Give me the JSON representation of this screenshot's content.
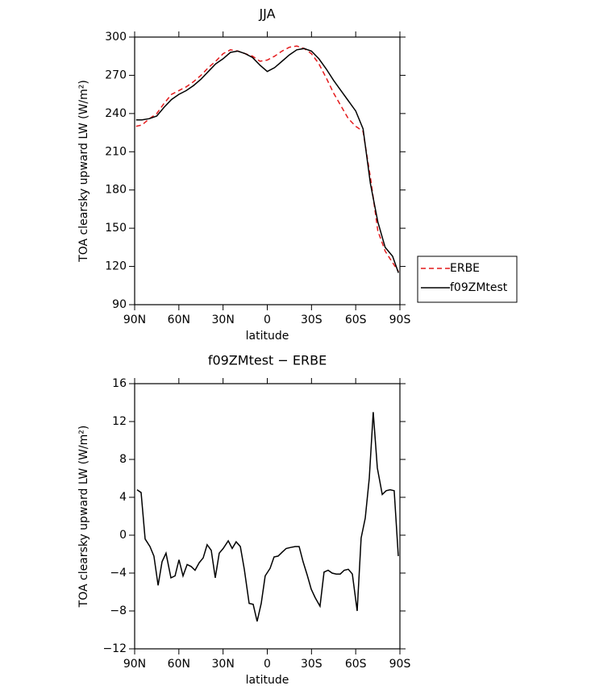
{
  "chart_data": [
    {
      "type": "line",
      "title": "JJA",
      "xlabel": "latitude",
      "ylabel": "TOA clearsky upward LW (W/m²)",
      "x": [
        89,
        85,
        80,
        75,
        70,
        65,
        60,
        55,
        50,
        45,
        40,
        35,
        30,
        25,
        20,
        15,
        10,
        5,
        0,
        -5,
        -10,
        -15,
        -20,
        -25,
        -30,
        -35,
        -40,
        -45,
        -50,
        -55,
        -60,
        -65,
        -70,
        -75,
        -80,
        -85,
        -89
      ],
      "xlim": [
        90,
        -90
      ],
      "xticks": [
        {
          "value": 90,
          "label": "90N"
        },
        {
          "value": 60,
          "label": "60N"
        },
        {
          "value": 30,
          "label": "30N"
        },
        0,
        {
          "value": -30,
          "label": "30S"
        },
        {
          "value": -60,
          "label": "60S"
        },
        {
          "value": -90,
          "label": "90S"
        }
      ],
      "ylim": [
        90,
        300
      ],
      "yticks": [
        90,
        120,
        150,
        180,
        210,
        240,
        270,
        300
      ],
      "legend": "right",
      "series": [
        {
          "name": "ERBE",
          "color": "#e41a1c",
          "dashed": true,
          "values": [
            230,
            231,
            236,
            240,
            248,
            255,
            258,
            261,
            265,
            270,
            276,
            281,
            287,
            290,
            289,
            287,
            285,
            281,
            282,
            285,
            289,
            292,
            293,
            291,
            287,
            279,
            268,
            256,
            246,
            236,
            230,
            226,
            190,
            148,
            132,
            123,
            116
          ]
        },
        {
          "name": "f09ZMtest",
          "color": "#000000",
          "dashed": false,
          "values": [
            235,
            235,
            236,
            238,
            245,
            251,
            255,
            258,
            262,
            267,
            273,
            279,
            283,
            288,
            289,
            287,
            284,
            278,
            273,
            276,
            281,
            286,
            290,
            291,
            289,
            283,
            275,
            266,
            258,
            250,
            242,
            228,
            185,
            155,
            135,
            128,
            115
          ]
        }
      ]
    },
    {
      "type": "line",
      "title": "f09ZMtest − ERBE",
      "xlabel": "latitude",
      "ylabel": "TOA clearsky upward LW (W/m²)",
      "x": [
        88.4,
        85.6,
        82.9,
        79.6,
        76.9,
        74.1,
        71.4,
        68.7,
        65.4,
        62.6,
        59.9,
        57.2,
        54.4,
        51.7,
        49,
        46.2,
        43.5,
        40.8,
        38,
        35.3,
        32.6,
        29.9,
        26.5,
        23.8,
        21.1,
        18.3,
        15.6,
        12.3,
        9.6,
        6.9,
        4.1,
        1.4,
        -1.9,
        -4.6,
        -7.4,
        -10.1,
        -12.8,
        -15.6,
        -18.9,
        -21.6,
        -24.3,
        -27.1,
        -29.8,
        -32.5,
        -35.8,
        -38.5,
        -41.3,
        -44,
        -46.8,
        -49.5,
        -52.2,
        -55,
        -57.7,
        -61,
        -63.7,
        -66.5,
        -69.2,
        -71.9,
        -74.7,
        -78,
        -80.7,
        -83.4,
        -86.1,
        -88.9
      ],
      "values": [
        4.8,
        4.5,
        -0.4,
        -1.2,
        -2.2,
        -5.3,
        -2.8,
        -1.9,
        -4.5,
        -4.3,
        -2.6,
        -4.3,
        -3.1,
        -3.3,
        -3.7,
        -2.9,
        -2.4,
        -1,
        -1.6,
        -4.5,
        -1.9,
        -1.4,
        -0.6,
        -1.4,
        -0.7,
        -1.2,
        -3.6,
        -7.2,
        -7.3,
        -9.1,
        -7.2,
        -4.3,
        -3.5,
        -2.3,
        -2.2,
        -1.8,
        -1.4,
        -1.3,
        -1.2,
        -1.2,
        -2.8,
        -4.2,
        -5.7,
        -6.6,
        -7.5,
        -3.9,
        -3.7,
        -4,
        -4.1,
        -4.1,
        -3.7,
        -3.6,
        -4.1,
        -8,
        -0.3,
        1.8,
        6,
        13,
        7.1,
        4.3,
        4.7,
        4.8,
        4.7,
        -2.2
      ],
      "color": "#000000",
      "xlim": [
        90,
        -90
      ],
      "xticks": [
        {
          "value": 90,
          "label": "90N"
        },
        {
          "value": 60,
          "label": "60N"
        },
        {
          "value": 30,
          "label": "30N"
        },
        0,
        {
          "value": -30,
          "label": "30S"
        },
        {
          "value": -60,
          "label": "60S"
        },
        {
          "value": -90,
          "label": "90S"
        }
      ],
      "ylim": [
        -12,
        16
      ],
      "yticks": [
        {
          "value": -12,
          "label": "−12"
        },
        {
          "value": -8,
          "label": "−8"
        },
        {
          "value": -4,
          "label": "−4"
        },
        0,
        4,
        8,
        12,
        16
      ]
    }
  ]
}
